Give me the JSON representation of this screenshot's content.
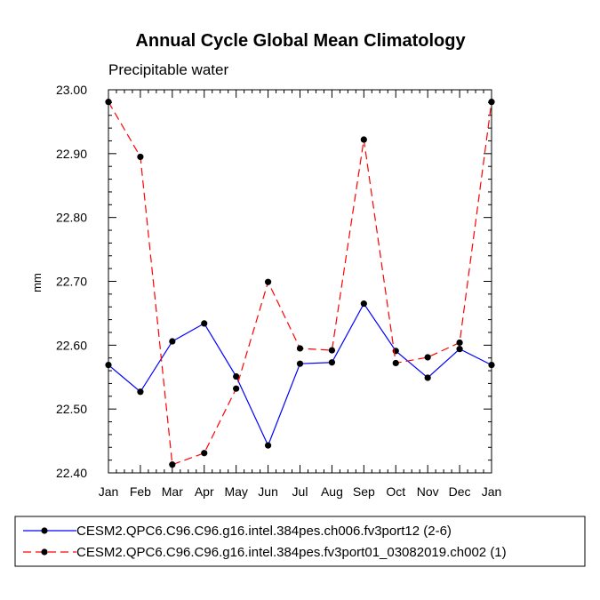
{
  "chart_data": {
    "type": "line",
    "title": "Annual Cycle Global Mean Climatology",
    "subtitle": "Precipitable water",
    "xlabel": "",
    "ylabel": "mm",
    "categories": [
      "Jan",
      "Feb",
      "Mar",
      "Apr",
      "May",
      "Jun",
      "Jul",
      "Aug",
      "Sep",
      "Oct",
      "Nov",
      "Dec",
      "Jan"
    ],
    "ylim": [
      22.4,
      23.0
    ],
    "yticks": [
      "22.40",
      "22.50",
      "22.60",
      "22.70",
      "22.80",
      "22.90",
      "23.00"
    ],
    "grid": false,
    "legend_position": "bottom",
    "series": [
      {
        "name": "CESM2.QPC6.C96.C96.g16.intel.384pes.ch006.fv3port12 (2-6)",
        "color": "#0000ff",
        "dash": "solid",
        "values": [
          22.569,
          22.527,
          22.606,
          22.634,
          22.551,
          22.443,
          22.571,
          22.573,
          22.665,
          22.591,
          22.549,
          22.594,
          22.569
        ]
      },
      {
        "name": "CESM2.QPC6.C96.C96.g16.intel.384pes.fv3port01_03082019.ch002 (1)",
        "color": "#ff0000",
        "dash": "dashed",
        "values": [
          22.981,
          22.895,
          22.413,
          22.431,
          22.532,
          22.699,
          22.595,
          22.592,
          22.922,
          22.572,
          22.581,
          22.604,
          22.981
        ]
      }
    ]
  }
}
